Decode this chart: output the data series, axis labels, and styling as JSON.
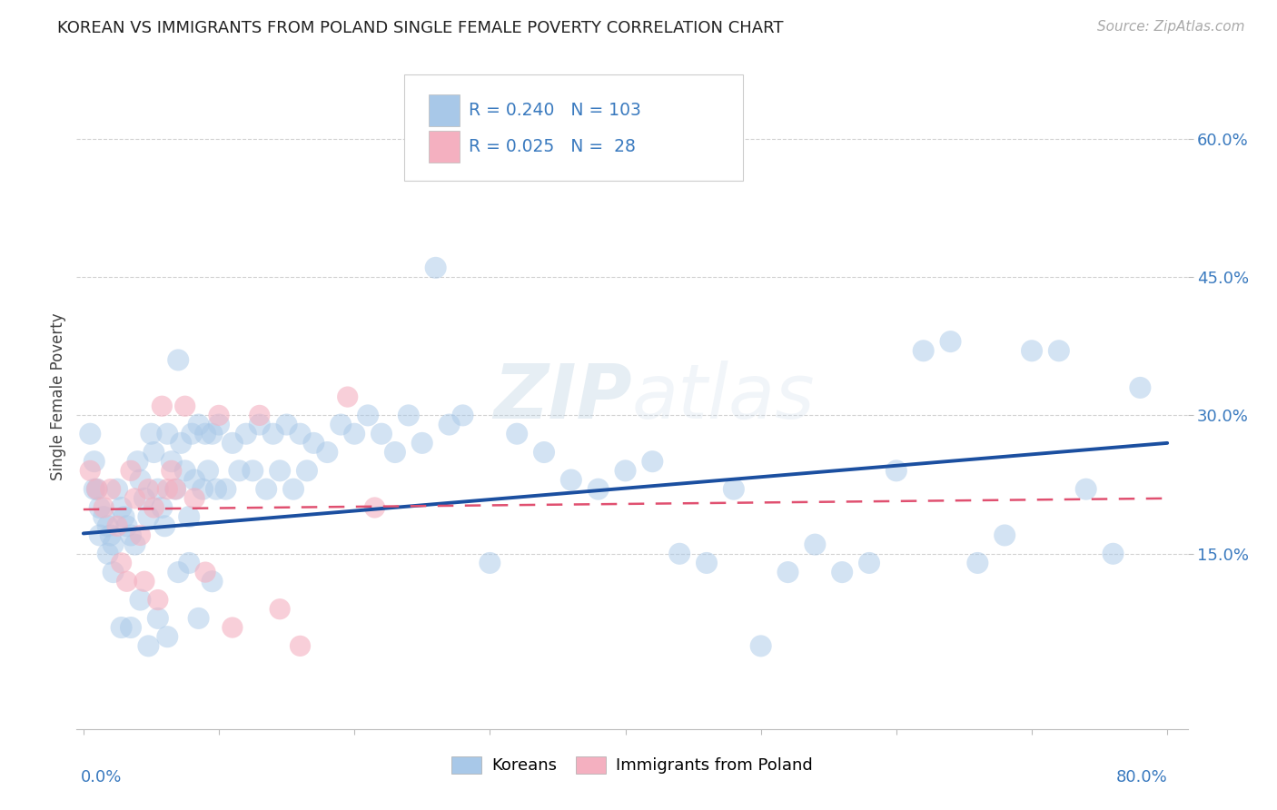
{
  "title": "KOREAN VS IMMIGRANTS FROM POLAND SINGLE FEMALE POVERTY CORRELATION CHART",
  "source": "Source: ZipAtlas.com",
  "ylabel": "Single Female Poverty",
  "ytick_values": [
    0.15,
    0.3,
    0.45,
    0.6
  ],
  "xlim": [
    -0.005,
    0.815
  ],
  "ylim": [
    -0.04,
    0.68
  ],
  "korean_R": 0.24,
  "korean_N": 103,
  "poland_R": 0.025,
  "poland_N": 28,
  "korean_color": "#a8c8e8",
  "poland_color": "#f4b0c0",
  "korean_line_color": "#1b4fa0",
  "poland_line_color": "#e05070",
  "background_color": "#ffffff",
  "korean_x": [
    0.005,
    0.008,
    0.01,
    0.012,
    0.015,
    0.018,
    0.02,
    0.022,
    0.025,
    0.028,
    0.03,
    0.032,
    0.035,
    0.038,
    0.04,
    0.042,
    0.045,
    0.048,
    0.05,
    0.052,
    0.055,
    0.058,
    0.06,
    0.062,
    0.065,
    0.068,
    0.07,
    0.072,
    0.075,
    0.078,
    0.08,
    0.082,
    0.085,
    0.088,
    0.09,
    0.092,
    0.095,
    0.098,
    0.1,
    0.105,
    0.11,
    0.115,
    0.12,
    0.125,
    0.13,
    0.135,
    0.14,
    0.145,
    0.15,
    0.155,
    0.16,
    0.165,
    0.17,
    0.18,
    0.19,
    0.2,
    0.21,
    0.22,
    0.23,
    0.24,
    0.25,
    0.26,
    0.27,
    0.28,
    0.3,
    0.32,
    0.34,
    0.36,
    0.38,
    0.4,
    0.42,
    0.44,
    0.46,
    0.48,
    0.5,
    0.52,
    0.54,
    0.56,
    0.58,
    0.6,
    0.62,
    0.64,
    0.66,
    0.68,
    0.7,
    0.72,
    0.74,
    0.76,
    0.78,
    0.008,
    0.012,
    0.018,
    0.022,
    0.028,
    0.035,
    0.042,
    0.048,
    0.055,
    0.062,
    0.07,
    0.078,
    0.085,
    0.095
  ],
  "korean_y": [
    0.28,
    0.25,
    0.22,
    0.2,
    0.19,
    0.18,
    0.17,
    0.16,
    0.22,
    0.2,
    0.19,
    0.18,
    0.17,
    0.16,
    0.25,
    0.23,
    0.21,
    0.19,
    0.28,
    0.26,
    0.22,
    0.2,
    0.18,
    0.28,
    0.25,
    0.22,
    0.36,
    0.27,
    0.24,
    0.19,
    0.28,
    0.23,
    0.29,
    0.22,
    0.28,
    0.24,
    0.28,
    0.22,
    0.29,
    0.22,
    0.27,
    0.24,
    0.28,
    0.24,
    0.29,
    0.22,
    0.28,
    0.24,
    0.29,
    0.22,
    0.28,
    0.24,
    0.27,
    0.26,
    0.29,
    0.28,
    0.3,
    0.28,
    0.26,
    0.3,
    0.27,
    0.46,
    0.29,
    0.3,
    0.14,
    0.28,
    0.26,
    0.23,
    0.22,
    0.24,
    0.25,
    0.15,
    0.14,
    0.22,
    0.05,
    0.13,
    0.16,
    0.13,
    0.14,
    0.24,
    0.37,
    0.38,
    0.14,
    0.17,
    0.37,
    0.37,
    0.22,
    0.15,
    0.33,
    0.22,
    0.17,
    0.15,
    0.13,
    0.07,
    0.07,
    0.1,
    0.05,
    0.08,
    0.06,
    0.13,
    0.14,
    0.08,
    0.12
  ],
  "poland_x": [
    0.005,
    0.01,
    0.015,
    0.02,
    0.025,
    0.028,
    0.032,
    0.035,
    0.038,
    0.042,
    0.045,
    0.048,
    0.052,
    0.055,
    0.058,
    0.062,
    0.065,
    0.068,
    0.075,
    0.082,
    0.09,
    0.1,
    0.11,
    0.13,
    0.145,
    0.16,
    0.195,
    0.215
  ],
  "poland_y": [
    0.24,
    0.22,
    0.2,
    0.22,
    0.18,
    0.14,
    0.12,
    0.24,
    0.21,
    0.17,
    0.12,
    0.22,
    0.2,
    0.1,
    0.31,
    0.22,
    0.24,
    0.22,
    0.31,
    0.21,
    0.13,
    0.3,
    0.07,
    0.3,
    0.09,
    0.05,
    0.32,
    0.2
  ],
  "korean_line_x0": 0.0,
  "korean_line_y0": 0.172,
  "korean_line_x1": 0.8,
  "korean_line_y1": 0.27,
  "poland_line_x0": 0.0,
  "poland_line_y0": 0.198,
  "poland_line_x1": 0.8,
  "poland_line_y1": 0.21
}
